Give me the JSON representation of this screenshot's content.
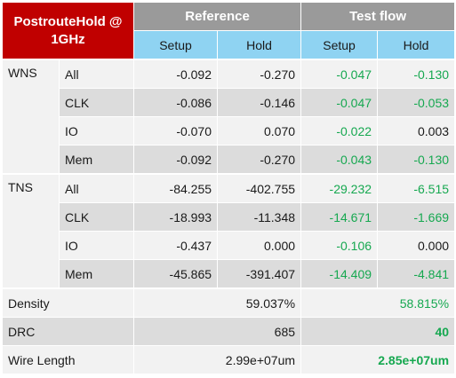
{
  "header": {
    "corner_label": "PostrouteHold @ 1GHz",
    "group_reference": "Reference",
    "group_testflow": "Test flow",
    "setup": "Setup",
    "hold": "Hold"
  },
  "wns": {
    "label": "WNS",
    "rows": [
      {
        "cat": "All",
        "ref_setup": "-0.092",
        "ref_hold": "-0.270",
        "tf_setup": "-0.047",
        "tf_hold": "-0.130"
      },
      {
        "cat": "CLK",
        "ref_setup": "-0.086",
        "ref_hold": "-0.146",
        "tf_setup": "-0.047",
        "tf_hold": "-0.053"
      },
      {
        "cat": "IO",
        "ref_setup": "-0.070",
        "ref_hold": "0.070",
        "tf_setup": "-0.022",
        "tf_hold": "0.003"
      },
      {
        "cat": "Mem",
        "ref_setup": "-0.092",
        "ref_hold": "-0.270",
        "tf_setup": "-0.043",
        "tf_hold": "-0.130"
      }
    ]
  },
  "tns": {
    "label": "TNS",
    "rows": [
      {
        "cat": "All",
        "ref_setup": "-84.255",
        "ref_hold": "-402.755",
        "tf_setup": "-29.232",
        "tf_hold": "-6.515"
      },
      {
        "cat": "CLK",
        "ref_setup": "-18.993",
        "ref_hold": "-11.348",
        "tf_setup": "-14.671",
        "tf_hold": "-1.669"
      },
      {
        "cat": "IO",
        "ref_setup": "-0.437",
        "ref_hold": "0.000",
        "tf_setup": "-0.106",
        "tf_hold": "0.000"
      },
      {
        "cat": "Mem",
        "ref_setup": "-45.865",
        "ref_hold": "-391.407",
        "tf_setup": "-14.409",
        "tf_hold": "-4.841"
      }
    ]
  },
  "density": {
    "label": "Density",
    "ref": "59.037%",
    "tf": "58.815%"
  },
  "drc": {
    "label": "DRC",
    "ref": "685",
    "tf": "40"
  },
  "wire_length": {
    "label": "Wire Length",
    "ref": "2.99e+07um",
    "tf": "2.85e+07um"
  },
  "colors": {
    "corner_red": "#c00000",
    "header_gray": "#9a9a9a",
    "subheader_blue": "#8fd3f2",
    "improved_green": "#16a850"
  }
}
